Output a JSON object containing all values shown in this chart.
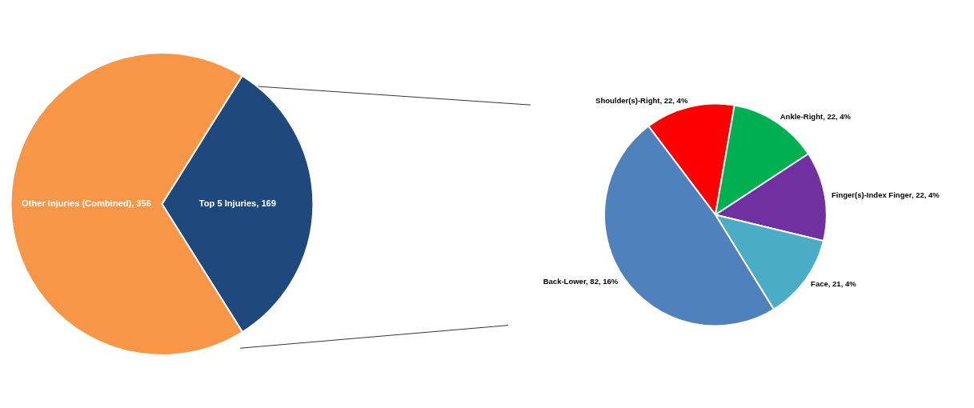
{
  "chart_data": [
    {
      "type": "pie",
      "categories": [
        "Top 5 Injuries",
        "Other Injuries (Combined)"
      ],
      "values": [
        169,
        356
      ],
      "colors": [
        "#1f497d",
        "#f79646"
      ],
      "value_labels": [
        "169",
        "356"
      ]
    },
    {
      "type": "pie",
      "categories": [
        "Shoulder(s)-Right",
        "Ankle-Right",
        "Finger(s)-Index Finger",
        "Face",
        "Back-Lower"
      ],
      "values": [
        22,
        22,
        22,
        21,
        82
      ],
      "colors": [
        "#ff0000",
        "#00b050",
        "#7030a0",
        "#4bacc6",
        "#4f81bd"
      ],
      "value_labels": [
        "22, 4%",
        "22, 4%",
        "22, 4%",
        "21, 4%",
        "82, 16%"
      ]
    }
  ]
}
